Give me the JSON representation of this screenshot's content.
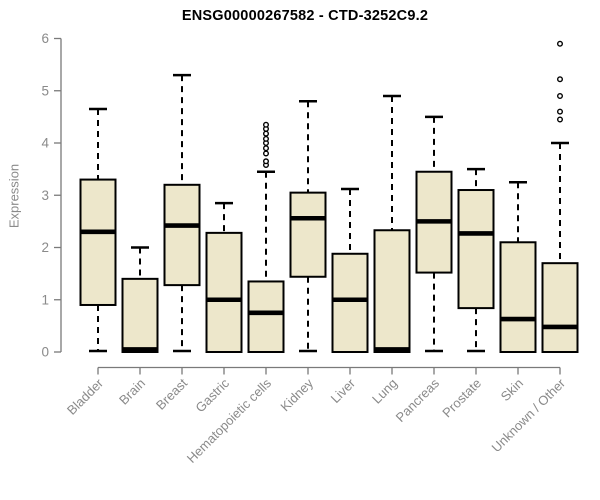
{
  "chart_data": {
    "type": "boxplot",
    "title": "ENSG00000267582 - CTD-3252C9.2",
    "xlabel": "",
    "ylabel": "Expression",
    "ylim": [
      0,
      6
    ],
    "yticks": [
      0,
      1,
      2,
      3,
      4,
      5,
      6
    ],
    "grid": false,
    "legend": "none",
    "categories": [
      "Bladder",
      "Brain",
      "Breast",
      "Gastric",
      "Hematopoietic cells",
      "Kidney",
      "Liver",
      "Lung",
      "Pancreas",
      "Prostate",
      "Skin",
      "Unknown / Other"
    ],
    "boxes": [
      {
        "label": "Bladder",
        "whisker_low": 0.02,
        "q1": 0.9,
        "median": 2.3,
        "q3": 3.3,
        "whisker_high": 4.65,
        "outliers": []
      },
      {
        "label": "Brain",
        "whisker_low": 0.0,
        "q1": 0.0,
        "median": 0.05,
        "q3": 1.4,
        "whisker_high": 2.0,
        "outliers": []
      },
      {
        "label": "Breast",
        "whisker_low": 0.02,
        "q1": 1.28,
        "median": 2.42,
        "q3": 3.2,
        "whisker_high": 5.3,
        "outliers": []
      },
      {
        "label": "Gastric",
        "whisker_low": 0.0,
        "q1": 0.0,
        "median": 1.0,
        "q3": 2.28,
        "whisker_high": 2.85,
        "outliers": []
      },
      {
        "label": "Hematopoietic cells",
        "whisker_low": 0.0,
        "q1": 0.0,
        "median": 0.75,
        "q3": 1.35,
        "whisker_high": 3.45,
        "outliers": [
          3.58,
          3.65,
          3.8,
          3.9,
          4.0,
          4.08,
          4.18,
          4.27,
          4.35
        ]
      },
      {
        "label": "Kidney",
        "whisker_low": 0.02,
        "q1": 1.44,
        "median": 2.56,
        "q3": 3.05,
        "whisker_high": 4.8,
        "outliers": []
      },
      {
        "label": "Liver",
        "whisker_low": 0.0,
        "q1": 0.0,
        "median": 1.0,
        "q3": 1.88,
        "whisker_high": 3.12,
        "outliers": []
      },
      {
        "label": "Lung",
        "whisker_low": 0.0,
        "q1": 0.0,
        "median": 0.05,
        "q3": 2.33,
        "whisker_high": 4.9,
        "outliers": []
      },
      {
        "label": "Pancreas",
        "whisker_low": 0.02,
        "q1": 1.52,
        "median": 2.5,
        "q3": 3.45,
        "whisker_high": 4.5,
        "outliers": []
      },
      {
        "label": "Prostate",
        "whisker_low": 0.02,
        "q1": 0.84,
        "median": 2.27,
        "q3": 3.1,
        "whisker_high": 3.5,
        "outliers": []
      },
      {
        "label": "Skin",
        "whisker_low": 0.0,
        "q1": 0.0,
        "median": 0.63,
        "q3": 2.1,
        "whisker_high": 3.25,
        "outliers": []
      },
      {
        "label": "Unknown / Other",
        "whisker_low": 0.0,
        "q1": 0.0,
        "median": 0.48,
        "q3": 1.7,
        "whisker_high": 4.0,
        "outliers": [
          4.45,
          4.6,
          4.9,
          5.22,
          5.9
        ]
      }
    ],
    "style": {
      "box_fill": "#EDE7CB",
      "box_stroke": "#000000",
      "median_color": "#000000",
      "whisker_color": "#000000",
      "whisker_style": "dashed",
      "outlier_fill": "#FFFFFF",
      "axis_color": "#7A7A7A",
      "label_color": "#8A8A8A",
      "title_color": "#000000",
      "background": "#FFFFFF"
    }
  }
}
